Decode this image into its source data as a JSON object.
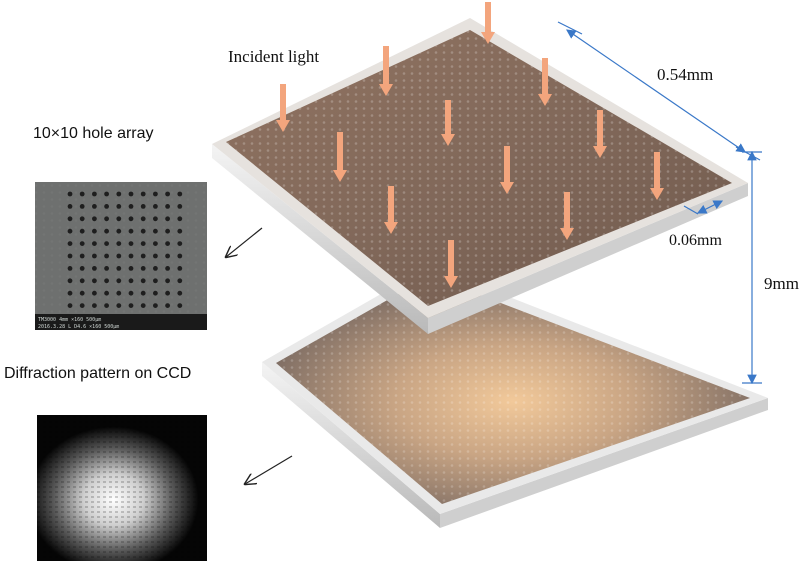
{
  "labels": {
    "incident_light": "Incident light",
    "hole_array": "10×10 hole array",
    "diffraction_pattern": "Diffraction pattern on CCD",
    "width_dim": "0.54mm",
    "rim_dim": "0.06mm",
    "gap_dim": "9mm"
  },
  "sem_caption": {
    "line1": "TM3000   4mm   ×160   500μm",
    "line2": "2016.3.28   L   D4.6   ×160   500μm"
  },
  "colors": {
    "arrow": "#f3a57d",
    "dimension": "#3a78c8",
    "top_plate": "#806657",
    "ccd_glow": "#f0c89a",
    "frame": "#dcdcdc"
  }
}
